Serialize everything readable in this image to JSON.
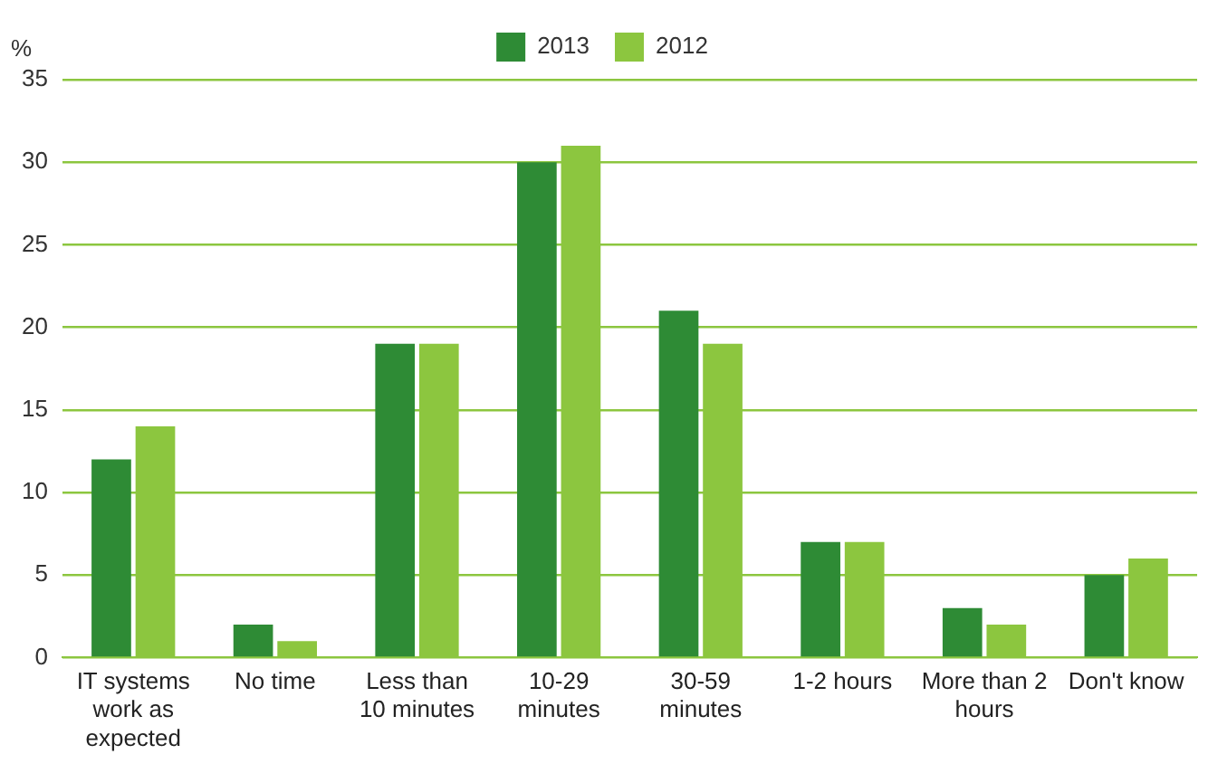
{
  "chart_data": {
    "type": "bar",
    "ylabel": "%",
    "categories": [
      "IT systems work as expected",
      "No time",
      "Less than 10 minutes",
      "10-29 minutes",
      "30-59 minutes",
      "1-2 hours",
      "More than 2 hours",
      "Don't know"
    ],
    "series": [
      {
        "name": "2013",
        "color": "#2e8b35",
        "values": [
          12,
          2,
          19,
          30,
          21,
          7,
          3,
          5
        ]
      },
      {
        "name": "2012",
        "color": "#8cc63f",
        "values": [
          14,
          1,
          19,
          31,
          19,
          7,
          2,
          6
        ]
      }
    ],
    "ylim": [
      0,
      35
    ],
    "yticks": [
      0,
      5,
      10,
      15,
      20,
      25,
      30,
      35
    ],
    "grid": "y",
    "legend": "top"
  }
}
